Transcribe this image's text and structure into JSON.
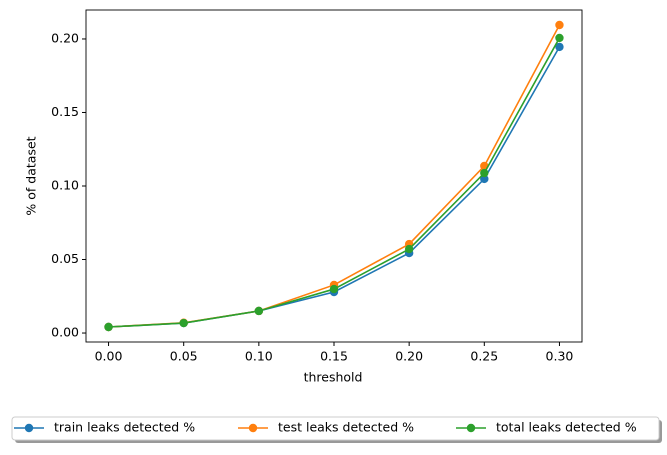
{
  "chart_data": {
    "type": "line",
    "xlabel": "threshold",
    "ylabel": "% of dataset",
    "x": [
      0.0,
      0.05,
      0.1,
      0.15,
      0.2,
      0.25,
      0.3
    ],
    "series": [
      {
        "name": "train leaks detected %",
        "color": "#1f77b4",
        "values": [
          0.0041,
          0.0068,
          0.015,
          0.0279,
          0.0544,
          0.1048,
          0.1946
        ]
      },
      {
        "name": "test leaks detected %",
        "color": "#ff7f0e",
        "values": [
          0.0041,
          0.007,
          0.015,
          0.0327,
          0.0605,
          0.1136,
          0.2095
        ]
      },
      {
        "name": "total leaks detected %",
        "color": "#2ca02c",
        "values": [
          0.0041,
          0.0068,
          0.015,
          0.0299,
          0.0571,
          0.1088,
          0.2007
        ]
      }
    ],
    "xlim": [
      -0.015,
      0.315
    ],
    "ylim": [
      -0.0061,
      0.2197
    ],
    "xticks": [
      {
        "value": 0.0,
        "label": "0.00"
      },
      {
        "value": 0.05,
        "label": "0.05"
      },
      {
        "value": 0.1,
        "label": "0.10"
      },
      {
        "value": 0.15,
        "label": "0.15"
      },
      {
        "value": 0.2,
        "label": "0.20"
      },
      {
        "value": 0.25,
        "label": "0.25"
      },
      {
        "value": 0.3,
        "label": "0.30"
      }
    ],
    "yticks": [
      {
        "value": 0.0,
        "label": "0.00"
      },
      {
        "value": 0.05,
        "label": "0.05"
      },
      {
        "value": 0.1,
        "label": "0.10"
      },
      {
        "value": 0.15,
        "label": "0.15"
      },
      {
        "value": 0.2,
        "label": "0.20"
      }
    ],
    "legend": "below",
    "grid": false
  }
}
